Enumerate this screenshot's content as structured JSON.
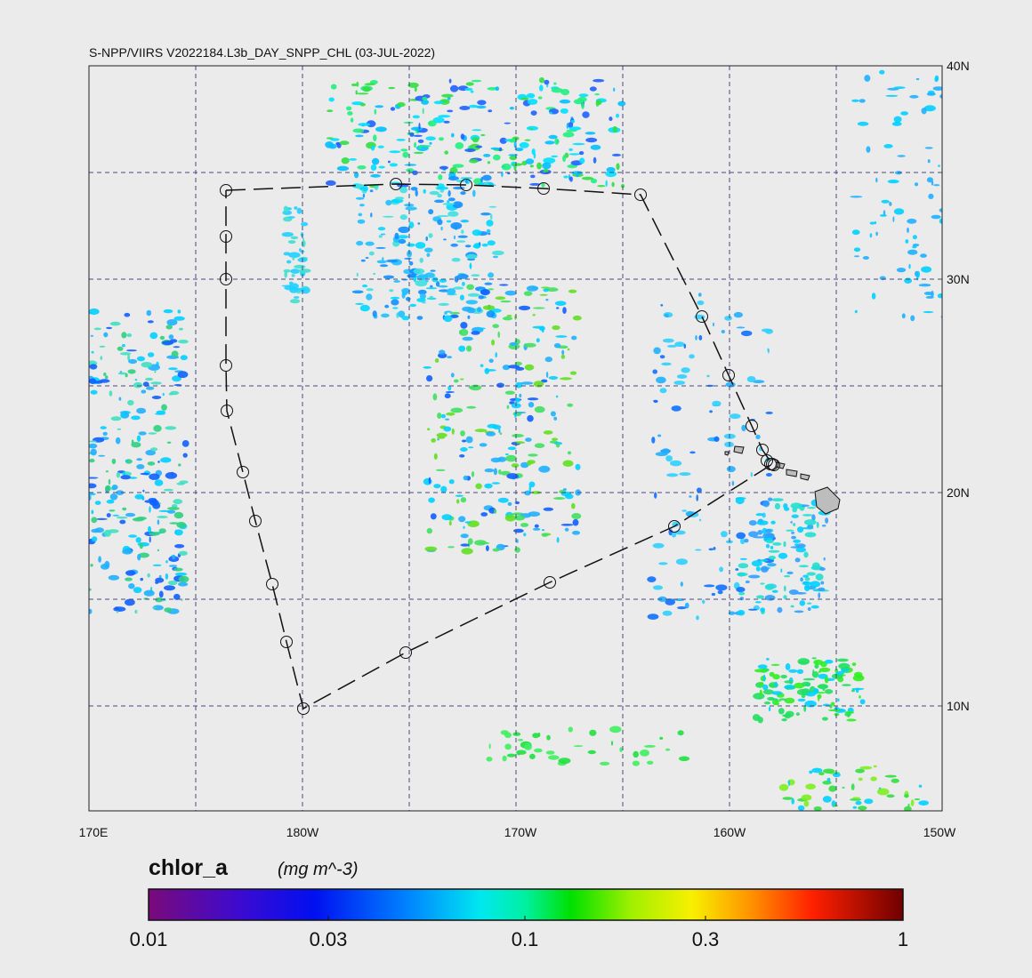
{
  "title": "S-NPP/VIIRS V2022184.L3b_DAY_SNPP_CHL (03-JUL-2022)",
  "map": {
    "lat_labels": [
      "40N",
      "30N",
      "20N",
      "10N"
    ],
    "lon_labels": [
      "170E",
      "180W",
      "170W",
      "160W",
      "150W"
    ]
  },
  "colorbar": {
    "variable": "chlor_a",
    "units": "(mg m^-3)",
    "tick_labels": [
      "0.01",
      "0.03",
      "0.1",
      "0.3",
      "1"
    ]
  }
}
